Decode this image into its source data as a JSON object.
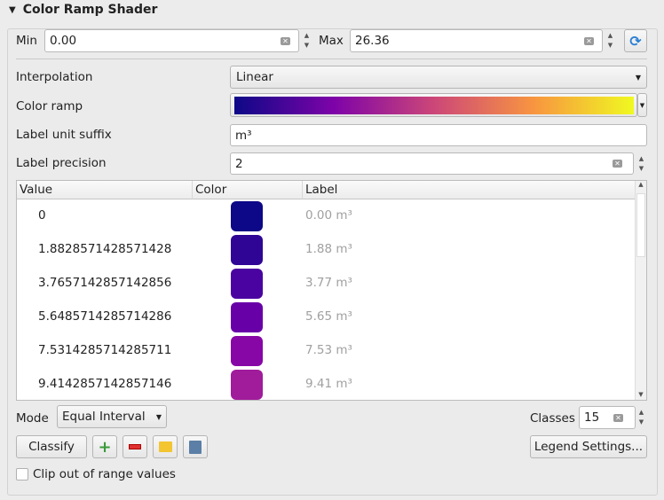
{
  "title": "Color Ramp Shader",
  "min": {
    "label": "Min",
    "value": "0.00"
  },
  "max": {
    "label": "Max",
    "value": "26.36"
  },
  "interpolation": {
    "label": "Interpolation",
    "value": "Linear"
  },
  "color_ramp": {
    "label": "Color ramp",
    "stops": [
      "#0d0887",
      "#7e03a8",
      "#cc4778",
      "#f89540",
      "#f0f921"
    ]
  },
  "unit_suffix": {
    "label": "Label unit suffix",
    "value": "m³"
  },
  "precision": {
    "label": "Label precision",
    "value": "2"
  },
  "table": {
    "headers": [
      "Value",
      "Color",
      "Label"
    ],
    "rows": [
      {
        "value": "0",
        "color": "#0d0887",
        "label": "0.00 m³"
      },
      {
        "value": "1.8828571428571428",
        "color": "#2e0595",
        "label": "1.88 m³"
      },
      {
        "value": "3.7657142857142856",
        "color": "#4a02a0",
        "label": "3.77 m³"
      },
      {
        "value": "5.6485714285714286",
        "color": "#6800a8",
        "label": "5.65 m³"
      },
      {
        "value": "7.5314285714285711",
        "color": "#8707a6",
        "label": "7.53 m³"
      },
      {
        "value": "9.4142857142857146",
        "color": "#a01c9b",
        "label": "9.41 m³"
      }
    ]
  },
  "mode": {
    "label": "Mode",
    "value": "Equal Interval"
  },
  "classes": {
    "label": "Classes",
    "value": "15"
  },
  "buttons": {
    "classify": "Classify",
    "legend": "Legend Settings..."
  },
  "clip": {
    "label": "Clip out of range values",
    "checked": false
  }
}
